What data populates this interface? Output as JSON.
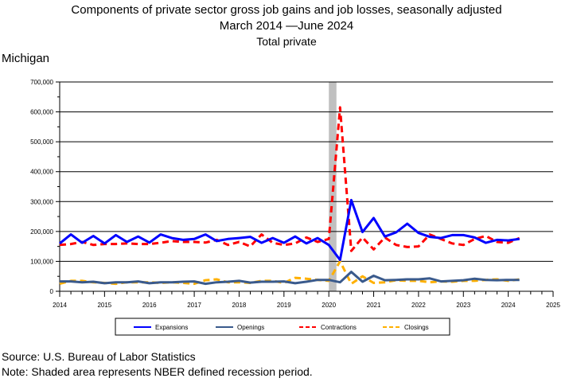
{
  "header": {
    "title": "Components of private sector gross job gains and job losses, seasonally adjusted",
    "subtitle": "March 2014 —June 2024",
    "series_title": "Total private",
    "region": "Michigan"
  },
  "footer": {
    "source": "Source: U.S. Bureau of Labor Statistics",
    "note": "Note: Shaded area represents NBER defined recession period."
  },
  "chart_data": {
    "type": "line",
    "title": "Components of private sector gross job gains and job losses, seasonally adjusted",
    "xlabel": "",
    "ylabel": "",
    "xlim": [
      2014,
      2025
    ],
    "ylim": [
      0,
      700000
    ],
    "y_ticks": [
      0,
      100000,
      200000,
      300000,
      400000,
      500000,
      600000,
      700000
    ],
    "y_tick_labels": [
      "0",
      "100,000",
      "200,000",
      "300,000",
      "400,000",
      "500,000",
      "600,000",
      "700,000"
    ],
    "x_ticks": [
      2014,
      2015,
      2016,
      2017,
      2018,
      2019,
      2020,
      2021,
      2022,
      2023,
      2024,
      2025
    ],
    "x_tick_labels": [
      "2014",
      "2015",
      "2016",
      "2017",
      "2018",
      "2019",
      "2020",
      "2021",
      "2022",
      "2023",
      "2024",
      "2025"
    ],
    "grid": true,
    "legend_position": "bottom",
    "recession": {
      "start": 2020.0,
      "end": 2020.17,
      "color": "#c0c0c0"
    },
    "x": [
      2014.0,
      2014.25,
      2014.5,
      2014.75,
      2015.0,
      2015.25,
      2015.5,
      2015.75,
      2016.0,
      2016.25,
      2016.5,
      2016.75,
      2017.0,
      2017.25,
      2017.5,
      2017.75,
      2018.0,
      2018.25,
      2018.5,
      2018.75,
      2019.0,
      2019.25,
      2019.5,
      2019.75,
      2020.0,
      2020.25,
      2020.5,
      2020.75,
      2021.0,
      2021.25,
      2021.5,
      2021.75,
      2022.0,
      2022.25,
      2022.5,
      2022.75,
      2023.0,
      2023.25,
      2023.5,
      2023.75,
      2024.0,
      2024.25
    ],
    "series": [
      {
        "name": "Expansions",
        "color": "#0000ff",
        "dash": "",
        "width": 3,
        "values": [
          160000,
          190000,
          162000,
          185000,
          160000,
          188000,
          165000,
          183000,
          163000,
          190000,
          178000,
          172000,
          175000,
          190000,
          168000,
          175000,
          178000,
          182000,
          162000,
          178000,
          162000,
          183000,
          160000,
          178000,
          155000,
          105000,
          305000,
          198000,
          245000,
          183000,
          197000,
          226000,
          195000,
          182000,
          178000,
          188000,
          188000,
          180000,
          162000,
          172000,
          170000,
          175000
        ]
      },
      {
        "name": "Openings",
        "color": "#3a5a8c",
        "dash": "",
        "width": 3,
        "values": [
          33000,
          33000,
          30000,
          32000,
          27000,
          30000,
          30000,
          33000,
          27000,
          30000,
          30000,
          32000,
          33000,
          25000,
          30000,
          32000,
          35000,
          29000,
          32000,
          32000,
          33000,
          27000,
          32000,
          38000,
          38000,
          30000,
          65000,
          32000,
          52000,
          37000,
          38000,
          40000,
          40000,
          43000,
          33000,
          35000,
          37000,
          42000,
          38000,
          37000,
          38000,
          38000
        ]
      },
      {
        "name": "Contractions",
        "color": "#ff0000",
        "dash": "8,5",
        "width": 3,
        "values": [
          155000,
          158000,
          165000,
          155000,
          158000,
          158000,
          160000,
          158000,
          158000,
          162000,
          168000,
          165000,
          165000,
          163000,
          172000,
          155000,
          165000,
          150000,
          190000,
          162000,
          155000,
          160000,
          180000,
          165000,
          175000,
          615000,
          135000,
          180000,
          140000,
          180000,
          155000,
          148000,
          150000,
          190000,
          175000,
          160000,
          155000,
          175000,
          185000,
          165000,
          162000,
          178000
        ]
      },
      {
        "name": "Closings",
        "color": "#ffb000",
        "dash": "8,5",
        "width": 3,
        "values": [
          25000,
          35000,
          35000,
          30000,
          28000,
          25000,
          30000,
          30000,
          30000,
          28000,
          30000,
          28000,
          25000,
          37000,
          40000,
          30000,
          30000,
          28000,
          35000,
          35000,
          28000,
          45000,
          42000,
          38000,
          35000,
          100000,
          25000,
          50000,
          28000,
          30000,
          37000,
          35000,
          35000,
          30000,
          33000,
          32000,
          35000,
          35000,
          38000,
          40000,
          35000,
          40000
        ]
      }
    ]
  }
}
